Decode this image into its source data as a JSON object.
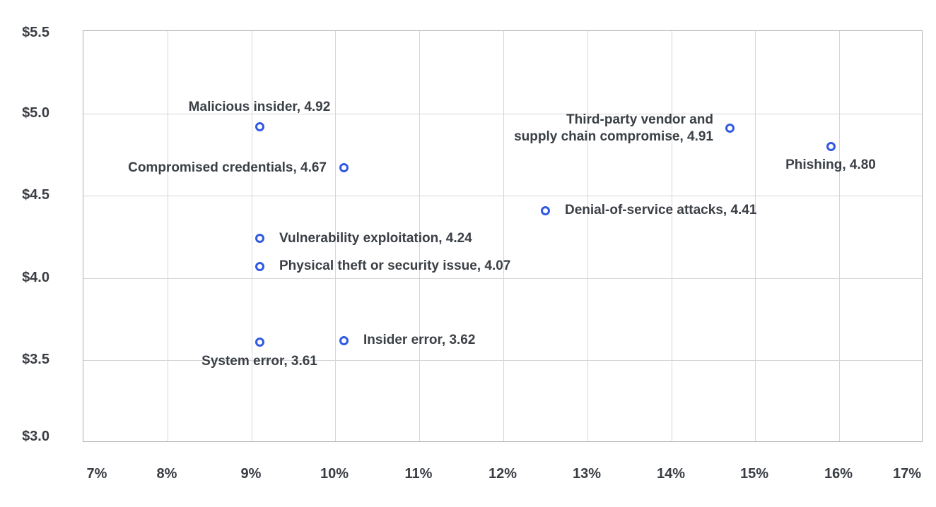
{
  "chart_data": {
    "type": "scatter",
    "title": "",
    "xlabel": "",
    "ylabel": "",
    "xlim": [
      7,
      17
    ],
    "ylim": [
      3.0,
      5.5
    ],
    "grid": true,
    "legend": "none",
    "marker_style": "open-circle",
    "colors": {
      "marker": "#3159e1",
      "label_text": "#3b4046",
      "tick_text": "#393d43",
      "gridline": "#d6d6d6",
      "plot_border": "#b0b0b0",
      "background": "#ffffff"
    },
    "x_ticks": [
      {
        "value": 7,
        "label": "7%"
      },
      {
        "value": 8,
        "label": "8%"
      },
      {
        "value": 9,
        "label": "9%"
      },
      {
        "value": 10,
        "label": "10%"
      },
      {
        "value": 11,
        "label": "11%"
      },
      {
        "value": 12,
        "label": "12%"
      },
      {
        "value": 13,
        "label": "13%"
      },
      {
        "value": 14,
        "label": "14%"
      },
      {
        "value": 15,
        "label": "15%"
      },
      {
        "value": 16,
        "label": "16%"
      },
      {
        "value": 17,
        "label": "17%"
      }
    ],
    "y_ticks": [
      {
        "value": 5.5,
        "label": "$5.5"
      },
      {
        "value": 5.0,
        "label": "$5.0"
      },
      {
        "value": 4.5,
        "label": "$4.5"
      },
      {
        "value": 4.0,
        "label": "$4.0"
      },
      {
        "value": 3.5,
        "label": "$3.5"
      },
      {
        "value": 3.0,
        "label": "$3.0"
      }
    ],
    "points": [
      {
        "name": "malicious-insider",
        "x": 9.1,
        "y": 4.92,
        "label": "Malicious insider, 4.92",
        "side": "above"
      },
      {
        "name": "third-party-vendor",
        "x": 14.7,
        "y": 4.91,
        "label": "Third-party vendor and\nsupply chain compromise, 4.91",
        "side": "left",
        "align": "right"
      },
      {
        "name": "phishing",
        "x": 15.9,
        "y": 4.8,
        "label": "Phishing, 4.80",
        "side": "below"
      },
      {
        "name": "compromised-credentials",
        "x": 10.1,
        "y": 4.67,
        "label": "Compromised credentials, 4.67",
        "side": "left"
      },
      {
        "name": "denial-of-service-attacks",
        "x": 12.5,
        "y": 4.41,
        "label": "Denial-of-service attacks, 4.41",
        "side": "right"
      },
      {
        "name": "vulnerability-exploitation",
        "x": 9.1,
        "y": 4.24,
        "label": "Vulnerability exploitation, 4.24",
        "side": "right"
      },
      {
        "name": "physical-theft",
        "x": 9.1,
        "y": 4.07,
        "label": "Physical theft or security issue, 4.07",
        "side": "right"
      },
      {
        "name": "insider-error",
        "x": 10.1,
        "y": 3.62,
        "label": "Insider error, 3.62",
        "side": "right"
      },
      {
        "name": "system-error",
        "x": 9.1,
        "y": 3.61,
        "label": "System error, 3.61",
        "side": "below"
      }
    ]
  }
}
